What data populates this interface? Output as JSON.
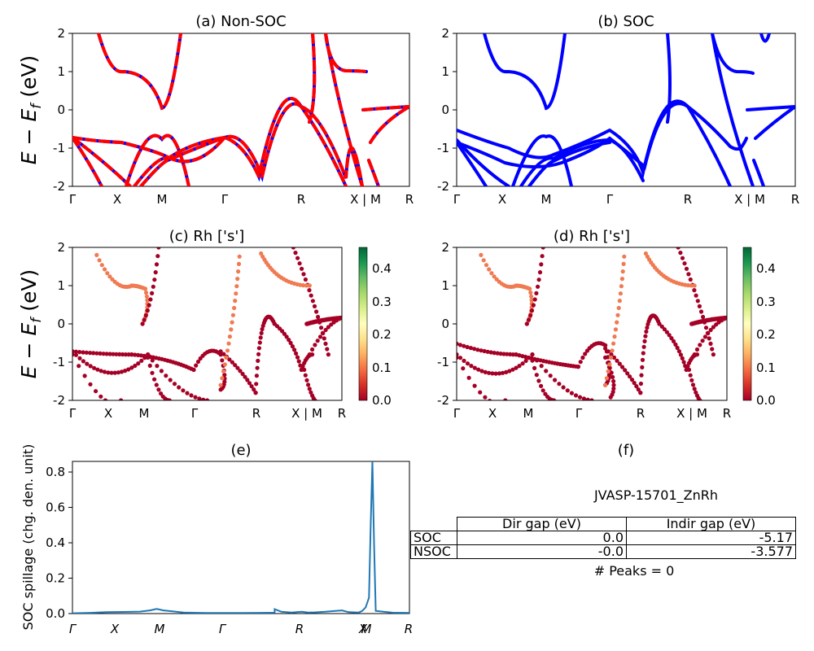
{
  "chart_data": [
    {
      "type": "line",
      "title": "(a) Non-SOC",
      "ylabel": "E - E_f (eV)",
      "ylim": [
        -2,
        2
      ],
      "yticks": [
        -2,
        -1,
        0,
        1,
        2
      ],
      "xticklabels": [
        "Γ",
        "X",
        "M",
        "Γ",
        "R",
        "X | M",
        "R"
      ],
      "series_colors": [
        "#0000ff",
        "#ff0000"
      ],
      "line_style": "blue solid overlaid by red dashed"
    },
    {
      "type": "line",
      "title": "(b) SOC",
      "ylim": [
        -2,
        2
      ],
      "yticks": [
        -2,
        -1,
        0,
        1,
        2
      ],
      "xticklabels": [
        "Γ",
        "X",
        "M",
        "Γ",
        "R",
        "X | M",
        "R"
      ],
      "series_colors": [
        "#0000ff"
      ]
    },
    {
      "type": "scatter",
      "title": "(c)  Rh ['s']",
      "ylabel": "E - E_f (eV)",
      "ylim": [
        -2,
        2
      ],
      "yticks": [
        -2,
        -1,
        0,
        1,
        2
      ],
      "xticklabels": [
        "Γ",
        "X",
        "M",
        "Γ",
        "R",
        "X | M",
        "R"
      ],
      "colorbar": {
        "min": 0.0,
        "max": 0.46,
        "ticks": [
          "0.0",
          "0.1",
          "0.2",
          "0.3",
          "0.4"
        ],
        "colormap": "RdYlGn"
      }
    },
    {
      "type": "scatter",
      "title": "(d) Rh ['s']",
      "ylim": [
        -2,
        2
      ],
      "yticks": [
        -2,
        -1,
        0,
        1,
        2
      ],
      "xticklabels": [
        "Γ",
        "X",
        "M",
        "Γ",
        "R",
        "X | M",
        "R"
      ],
      "colorbar": {
        "min": 0.0,
        "max": 0.46,
        "ticks": [
          "0.0",
          "0.1",
          "0.2",
          "0.3",
          "0.4"
        ],
        "colormap": "RdYlGn"
      }
    },
    {
      "type": "line",
      "title": "(e)",
      "ylabel": "SOC spillage (chg. den. unit)",
      "ylim": [
        0,
        0.86
      ],
      "yticks": [
        "0.0",
        "0.2",
        "0.4",
        "0.6",
        "0.8"
      ],
      "xticklabels": [
        "Γ",
        "X",
        "M",
        "Γ",
        "R",
        "X",
        "M",
        "R"
      ],
      "series_colors": [
        "#1f77b4"
      ],
      "x": [
        0,
        0.05,
        0.1,
        0.15,
        0.2,
        0.23,
        0.25,
        0.27,
        0.3,
        0.33,
        0.35,
        0.38,
        0.4,
        0.45,
        0.5,
        0.55,
        0.6,
        0.6,
        0.62,
        0.65,
        0.68,
        0.7,
        0.72,
        0.75,
        0.78,
        0.8,
        0.82,
        0.85,
        0.86,
        0.87,
        0.88,
        0.885,
        0.89,
        0.895,
        0.9,
        0.95,
        1.0
      ],
      "y": [
        0.002,
        0.004,
        0.008,
        0.009,
        0.011,
        0.018,
        0.026,
        0.018,
        0.012,
        0.006,
        0.005,
        0.004,
        0.003,
        0.003,
        0.003,
        0.004,
        0.005,
        0.025,
        0.01,
        0.006,
        0.01,
        0.006,
        0.007,
        0.01,
        0.015,
        0.018,
        0.008,
        0.006,
        0.015,
        0.035,
        0.09,
        0.5,
        0.86,
        0.4,
        0.015,
        0.005,
        0.004
      ]
    }
  ],
  "panel_f": {
    "title": "(f)",
    "material": "JVASP-15701_ZnRh",
    "columns": [
      "Dir gap (eV)",
      "Indir gap (eV)"
    ],
    "rows": [
      {
        "label": "SOC",
        "dir": "0.0",
        "indir": "-5.17"
      },
      {
        "label": "NSOC",
        "dir": "-0.0",
        "indir": "-3.577"
      }
    ],
    "peaks": "# Peaks = 0"
  }
}
